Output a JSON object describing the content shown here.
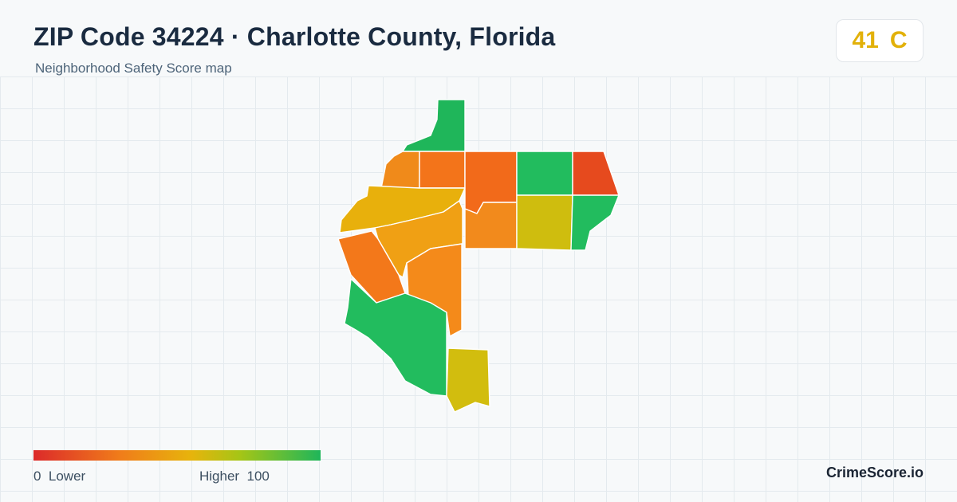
{
  "header": {
    "title": "ZIP Code 34224 · Charlotte County, Florida",
    "subtitle": "Neighborhood Safety Score map"
  },
  "score": {
    "value": "41",
    "grade": "C",
    "color": "#e2b10a"
  },
  "legend": {
    "min_label": "0  Lower",
    "max_label": "Higher  100",
    "min_value": 0,
    "max_value": 100,
    "low_color": "#dc2a2a",
    "high_color": "#1fb65a"
  },
  "brand": "CrimeScore.io",
  "regions_colors": {
    "north_strip": "#1fb65a",
    "nw_block": "#f08a1a",
    "center_small": "#f3741a",
    "north_center": "#f26a1a",
    "north_east_green": "#22bc5e",
    "ne_red": "#e64a1e",
    "west_yellow": "#e8b00c",
    "center_orange": "#f0a014",
    "center_lower": "#f28a1c",
    "east_olive": "#cfbd0e",
    "east_green": "#22bc5e",
    "sw_orange": "#f3781a",
    "south_orange": "#f48a1a",
    "south_green": "#22bc5e",
    "south_olive": "#d2bd0e"
  }
}
